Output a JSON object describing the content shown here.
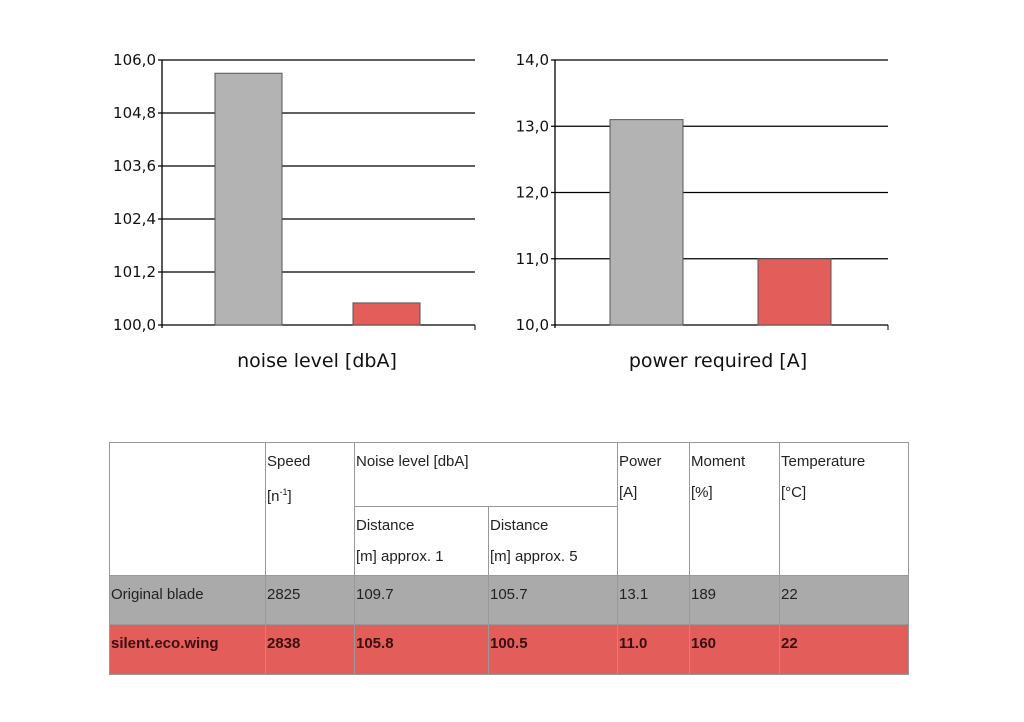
{
  "chart_data": [
    {
      "type": "bar",
      "title": "",
      "xlabel": "noise level [dbA]",
      "ylabel": "",
      "ylim": [
        100.0,
        106.0
      ],
      "yticks": [
        "100,0",
        "101,2",
        "102,4",
        "103,6",
        "104,8",
        "106,0"
      ],
      "categories": [
        "Original blade",
        "silent.eco.wing"
      ],
      "values": [
        105.7,
        100.5
      ],
      "colors": [
        "#b3b3b3",
        "#e35d5a"
      ],
      "grid": true
    },
    {
      "type": "bar",
      "title": "",
      "xlabel": "power required [A]",
      "ylabel": "",
      "ylim": [
        10.0,
        14.0
      ],
      "yticks": [
        "10,0",
        "11,0",
        "12,0",
        "13,0",
        "14,0"
      ],
      "categories": [
        "Original blade",
        "silent.eco.wing"
      ],
      "values": [
        13.1,
        11.0
      ],
      "colors": [
        "#b3b3b3",
        "#e35d5a"
      ],
      "grid": true
    }
  ],
  "table": {
    "speed": "Speed",
    "speed_unit": "[n",
    "speed_sup": "-1",
    "speed_close": "]",
    "noise": "Noise level [dbA]",
    "d1a": "Distance",
    "d1b": "[m] approx. 1",
    "d5a": "Distance",
    "d5b": "[m] approx. 5",
    "power": "Power",
    "power_unit": "[A]",
    "moment": "Moment",
    "moment_unit": "[%]",
    "temp": "Temperature",
    "temp_unit": "[°C]",
    "rows": [
      [
        "Original blade",
        "2825",
        "109.7",
        "105.7",
        "13.1",
        "189",
        "22"
      ],
      [
        "silent.eco.wing",
        "2838",
        "105.8",
        "100.5",
        "11.0",
        "160",
        "22"
      ]
    ]
  }
}
